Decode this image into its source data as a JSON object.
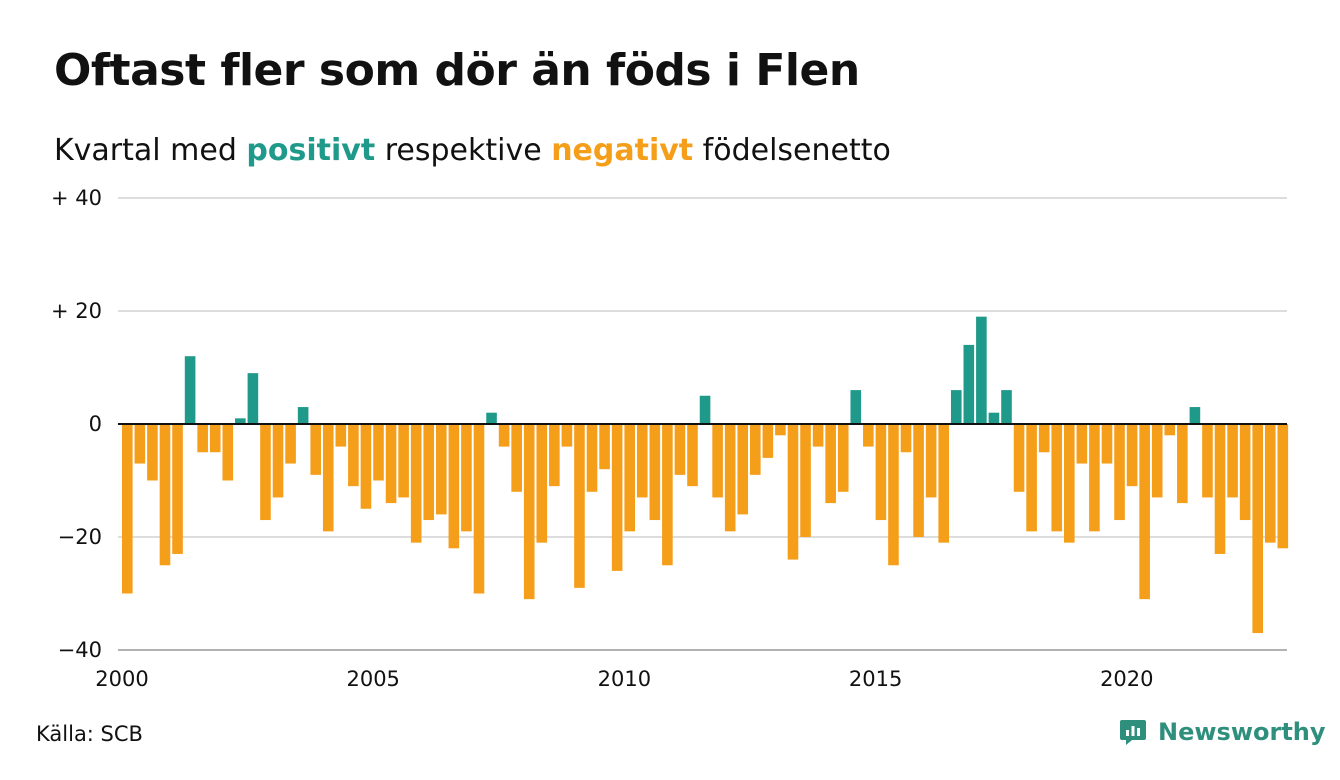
{
  "header": {
    "title": "Oftast fler som dör än föds i Flen",
    "subtitle_prefix": "Kvartal med ",
    "subtitle_pos": "positivt",
    "subtitle_mid": " respektive ",
    "subtitle_neg": "negativt",
    "subtitle_suffix": " födelsenetto"
  },
  "footer": {
    "source": "Källa: SCB",
    "brand": "Newsworthy"
  },
  "colors": {
    "positive": "#1f9a8a",
    "negative": "#f59e1a",
    "brand": "#2f8f7d",
    "grid": "#dddddd"
  },
  "chart_data": {
    "type": "bar",
    "xlabel": "",
    "ylabel": "",
    "ylim": [
      -40,
      40
    ],
    "grid": true,
    "y_ticks": [
      {
        "value": 40,
        "label": "+ 40"
      },
      {
        "value": 20,
        "label": "+ 20"
      },
      {
        "value": 0,
        "label": "0"
      },
      {
        "value": -20,
        "label": "−20"
      },
      {
        "value": -40,
        "label": "−40"
      }
    ],
    "x_ticks": [
      {
        "value": 2000,
        "label": "2000"
      },
      {
        "value": 2005,
        "label": "2005"
      },
      {
        "value": 2010,
        "label": "2010"
      },
      {
        "value": 2015,
        "label": "2015"
      },
      {
        "value": 2020,
        "label": "2020"
      }
    ],
    "x_start": "2000 Q1",
    "x_end": "2023 Q1",
    "values": [
      -30,
      -7,
      -10,
      -25,
      -23,
      12,
      -5,
      -5,
      -10,
      1,
      9,
      -17,
      -13,
      -7,
      3,
      -9,
      -19,
      -4,
      -11,
      -15,
      -10,
      -14,
      -13,
      -21,
      -17,
      -16,
      -22,
      -19,
      -30,
      2,
      -4,
      -12,
      -31,
      -21,
      -11,
      -4,
      -29,
      -12,
      -8,
      -26,
      -19,
      -13,
      -17,
      -25,
      -9,
      -11,
      5,
      -13,
      -19,
      -16,
      -9,
      -6,
      -2,
      -24,
      -20,
      -4,
      -14,
      -12,
      6,
      -4,
      -17,
      -25,
      -5,
      -20,
      -13,
      -21,
      6,
      14,
      19,
      2,
      6,
      -12,
      -19,
      -5,
      -19,
      -21,
      -7,
      -19,
      -7,
      -17,
      -11,
      -31,
      -13,
      -2,
      -14,
      3,
      -13,
      -23,
      -13,
      -17,
      -37,
      -21,
      -22
    ]
  }
}
